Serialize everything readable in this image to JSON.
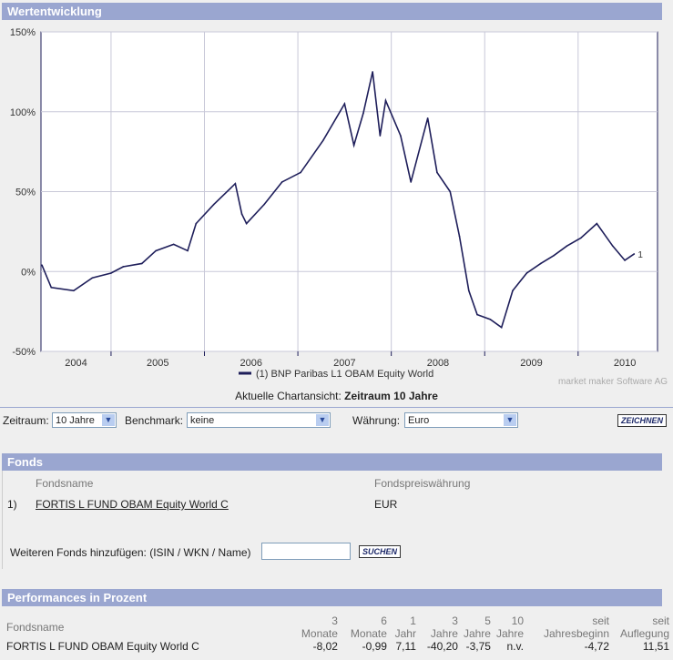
{
  "chart_section": {
    "title": "Wertentwicklung",
    "credit": "market maker Software AG",
    "current_view_label": "Aktuelle Chartansicht:",
    "current_view_value": "Zeitraum 10 Jahre"
  },
  "chart_data": {
    "type": "line",
    "title": "",
    "xlabel": "",
    "ylabel": "",
    "y_ticks": [
      "150%",
      "100%",
      "50%",
      "0%",
      "-50%"
    ],
    "ylim": [
      -50,
      150
    ],
    "xlim": [
      2004.25,
      2010.85
    ],
    "x_tick_labels": [
      "2004",
      "2005",
      "2006",
      "2007",
      "2008",
      "2009",
      "2010"
    ],
    "legend": "(1)  BNP Paribas L1 OBAM Equity World",
    "end_label": "1",
    "line_color": "#1e1e5a",
    "series": [
      {
        "name": "(1) BNP Paribas L1 OBAM Equity World",
        "x": [
          2004.26,
          2004.36,
          2004.6,
          2004.8,
          2005.0,
          2005.13,
          2005.33,
          2005.48,
          2005.67,
          2005.82,
          2005.91,
          2006.1,
          2006.33,
          2006.4,
          2006.45,
          2006.64,
          2006.83,
          2007.03,
          2007.27,
          2007.5,
          2007.6,
          2007.7,
          2007.8,
          2007.88,
          2007.94,
          2008.1,
          2008.21,
          2008.39,
          2008.49,
          2008.63,
          2008.73,
          2008.83,
          2008.92,
          2009.06,
          2009.18,
          2009.3,
          2009.45,
          2009.6,
          2009.74,
          2009.88,
          2010.03,
          2010.2,
          2010.37,
          2010.5,
          2010.6
        ],
        "y": [
          4,
          -10,
          -12,
          -4,
          -1,
          3,
          5,
          13,
          17,
          13,
          30,
          42,
          55,
          36,
          30,
          42,
          56,
          62,
          82,
          105,
          79,
          99,
          125,
          85,
          107,
          85,
          56,
          96,
          62,
          50,
          22,
          -12,
          -27,
          -30,
          -35,
          -12,
          -1,
          5,
          10,
          16,
          21,
          30,
          16,
          7,
          11
        ]
      }
    ]
  },
  "controls": {
    "zeitraum_label": "Zeitraum:",
    "zeitraum_value": "10 Jahre",
    "benchmark_label": "Benchmark:",
    "benchmark_value": "keine",
    "waehrung_label": "Währung:",
    "waehrung_value": "Euro",
    "draw_button": "ZEICHNEN"
  },
  "fonds": {
    "title": "Fonds",
    "col_name": "Fondsname",
    "col_currency": "Fondspreiswährung",
    "rows": [
      {
        "num": "1)",
        "name": "FORTIS L FUND OBAM Equity World C",
        "currency": "EUR"
      }
    ],
    "add_label": "Weiteren Fonds hinzufügen: (ISIN / WKN / Name)",
    "add_value": "",
    "search_button": "SUCHEN"
  },
  "performance": {
    "title": "Performances in Prozent",
    "headers": [
      [
        "",
        "Fondsname"
      ],
      [
        "3",
        "Monate"
      ],
      [
        "6",
        "Monate"
      ],
      [
        "1",
        "Jahr"
      ],
      [
        "3",
        "Jahre"
      ],
      [
        "5",
        "Jahre"
      ],
      [
        "10",
        "Jahre"
      ],
      [
        "seit",
        "Jahresbeginn"
      ],
      [
        "seit",
        "Auflegung"
      ]
    ],
    "rows": [
      [
        "FORTIS L FUND OBAM Equity World C",
        "-8,02",
        "-0,99",
        "7,11",
        "-40,20",
        "-3,75",
        "n.v.",
        "-4,72",
        "11,51"
      ]
    ]
  }
}
